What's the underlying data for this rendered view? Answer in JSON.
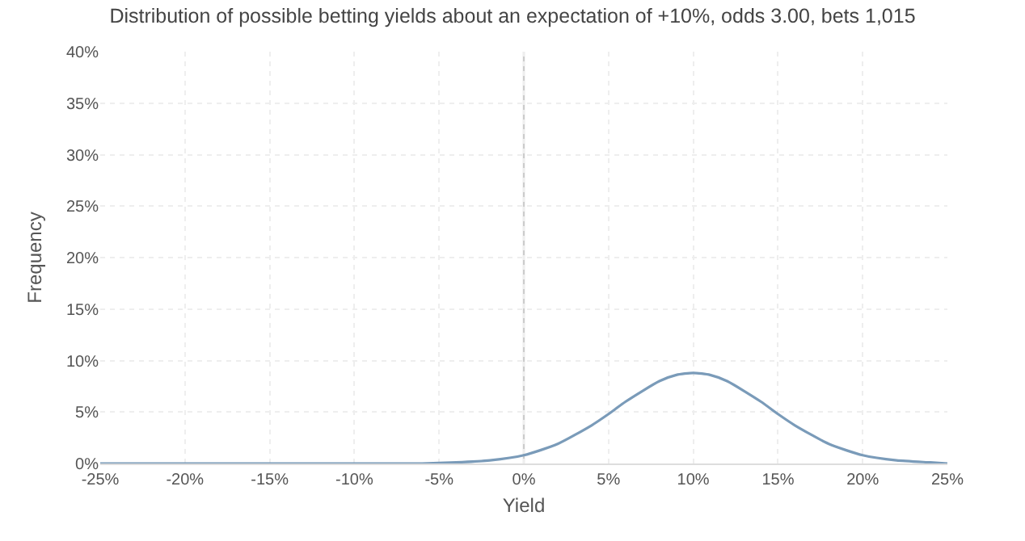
{
  "chart_data": {
    "type": "line",
    "title": "Distribution of possible betting yields about an expectation of +10%, odds 3.00, bets 1,015",
    "xlabel": "Yield",
    "ylabel": "Frequency",
    "x": [
      -25,
      -20,
      -15,
      -10,
      -6,
      -4,
      -2,
      0,
      2,
      4,
      5,
      6,
      8,
      9,
      10,
      11,
      12,
      14,
      15,
      16,
      18,
      20,
      22,
      24,
      25
    ],
    "series": [
      {
        "color": "#7a9bb9",
        "values": [
          0,
          0,
          0,
          0,
          0,
          0.1,
          0.3,
          0.8,
          1.9,
          3.7,
          4.8,
          6,
          8,
          8.6,
          8.8,
          8.6,
          8,
          6,
          4.8,
          3.7,
          1.9,
          0.8,
          0.3,
          0.1,
          0
        ]
      }
    ],
    "xlim": [
      -25,
      25
    ],
    "ylim": [
      0,
      40
    ],
    "xticks": [
      {
        "value": -25,
        "label": "-25%"
      },
      {
        "value": -20,
        "label": "-20%"
      },
      {
        "value": -15,
        "label": "-15%"
      },
      {
        "value": -10,
        "label": "-10%"
      },
      {
        "value": -5,
        "label": "-5%"
      },
      {
        "value": 0,
        "label": "0%"
      },
      {
        "value": 5,
        "label": "5%"
      },
      {
        "value": 10,
        "label": "10%"
      },
      {
        "value": 15,
        "label": "15%"
      },
      {
        "value": 20,
        "label": "20%"
      },
      {
        "value": 25,
        "label": "25%"
      }
    ],
    "yticks": [
      {
        "value": 0,
        "label": "0%"
      },
      {
        "value": 5,
        "label": "5%"
      },
      {
        "value": 10,
        "label": "10%"
      },
      {
        "value": 15,
        "label": "15%"
      },
      {
        "value": 20,
        "label": "20%"
      },
      {
        "value": 25,
        "label": "25%"
      },
      {
        "value": 30,
        "label": "30%"
      },
      {
        "value": 35,
        "label": "35%"
      },
      {
        "value": 40,
        "label": "40%"
      }
    ],
    "ref_lines": [
      {
        "axis": "x",
        "value": 0,
        "color": "#cccccc"
      }
    ],
    "grid": true,
    "marker": "none",
    "line_style": "solid"
  }
}
